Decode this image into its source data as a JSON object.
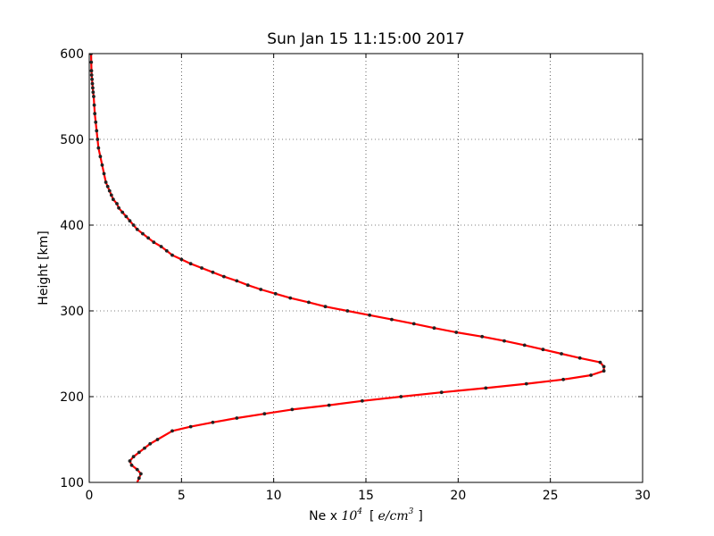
{
  "chart_data": {
    "type": "line",
    "title": "Sun Jan 15 11:15:00 2017",
    "xlabel": {
      "prefix": "Ne x ",
      "base": "10",
      "exponent": "4",
      "unit_open": "[",
      "unit_var": "e/cm",
      "unit_exponent": "3",
      "unit_close": "]"
    },
    "ylabel": "Height [km]",
    "xlim": [
      0,
      30
    ],
    "ylim": [
      100,
      600
    ],
    "xticks": [
      "0",
      "5",
      "10",
      "15",
      "20",
      "25",
      "30"
    ],
    "yticks": [
      "100",
      "200",
      "300",
      "400",
      "500",
      "600"
    ],
    "grid": true,
    "colors": {
      "line": "#ff0000",
      "marker": "#222222"
    },
    "series": [
      {
        "x": [
          2.7,
          2.8,
          2.6,
          2.3,
          2.2,
          2.4,
          2.7,
          3.0,
          3.3,
          3.7,
          4.5,
          5.5,
          6.7,
          8.0,
          9.5,
          11.0,
          13.0,
          14.8,
          16.9,
          19.1,
          21.5,
          23.7,
          25.7,
          27.2,
          27.9,
          27.9,
          27.7,
          26.6,
          25.6,
          24.6,
          23.6,
          22.5,
          21.3,
          19.9,
          18.7,
          17.6,
          16.4,
          15.2,
          14.0,
          12.8,
          11.9,
          10.9,
          10.1,
          9.3,
          8.6,
          8.0,
          7.3,
          6.7,
          6.1,
          5.5,
          5.0,
          4.5,
          4.2,
          3.9,
          3.5,
          3.2,
          2.9,
          2.6,
          2.4,
          2.2,
          2.0,
          1.8,
          1.6,
          1.5,
          1.3,
          1.2,
          1.1,
          1.0,
          0.9,
          0.8,
          0.7,
          0.6,
          0.5,
          0.45,
          0.4,
          0.35,
          0.3,
          0.27,
          0.24,
          0.21,
          0.19,
          0.17,
          0.15,
          0.13,
          0.12,
          0.11,
          0.1
        ],
        "y": [
          105,
          110,
          115,
          120,
          125,
          130,
          135,
          140,
          145,
          150,
          160,
          165,
          170,
          175,
          180,
          185,
          190,
          195,
          200,
          205,
          210,
          215,
          220,
          225,
          230,
          235,
          240,
          245,
          250,
          255,
          260,
          265,
          270,
          275,
          280,
          285,
          290,
          295,
          300,
          305,
          310,
          315,
          320,
          325,
          330,
          335,
          340,
          345,
          350,
          355,
          360,
          365,
          370,
          375,
          380,
          385,
          390,
          395,
          400,
          405,
          410,
          415,
          420,
          425,
          430,
          435,
          440,
          445,
          450,
          460,
          470,
          480,
          490,
          500,
          510,
          520,
          530,
          540,
          550,
          555,
          560,
          565,
          570,
          575,
          580,
          590,
          600
        ]
      }
    ]
  }
}
